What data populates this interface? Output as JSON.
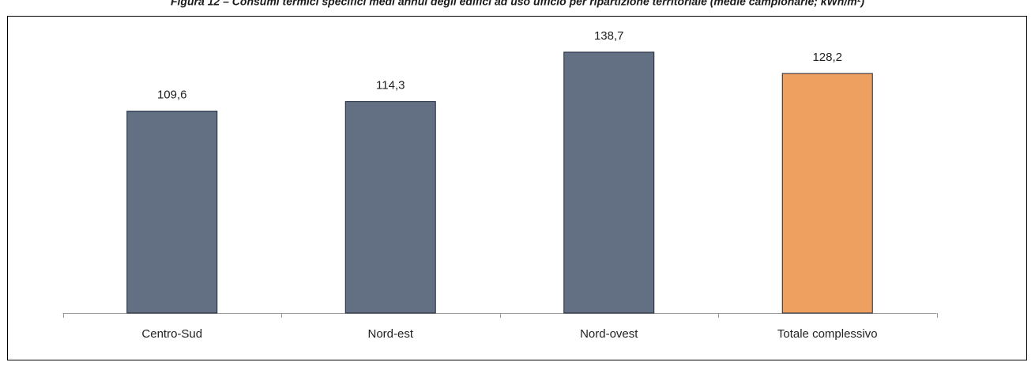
{
  "chart_data": {
    "type": "bar",
    "title": "Figura 12 – Consumi termici specifici medi annui degli edifici ad uso ufficio per ripartizione territoriale (medie campionarie; kWh/m²)",
    "categories": [
      "Centro-Sud",
      "Nord-est",
      "Nord-ovest",
      "Totale complessivo"
    ],
    "values": [
      109.6,
      114.3,
      138.7,
      128.2
    ],
    "value_labels": [
      "109,6",
      "114,3",
      "138,7",
      "128,2"
    ],
    "colors": [
      "#636f82",
      "#636f82",
      "#636f82",
      "#eda060"
    ],
    "ylim": [
      10,
      150
    ]
  }
}
